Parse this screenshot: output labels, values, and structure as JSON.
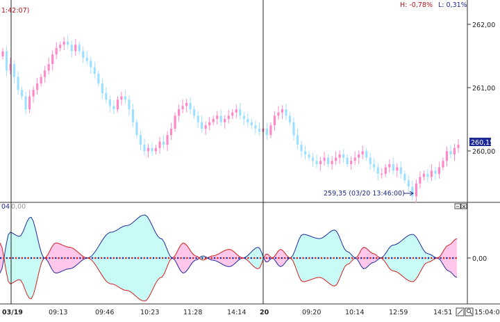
{
  "header": {
    "time_hint": "1:42:07)",
    "hl_high": "H: -0,78%",
    "hl_low": "L: 0,31%"
  },
  "price_axis": {
    "ticks": [
      "262,00",
      "261,00",
      "260,00"
    ],
    "current_price": "260,15"
  },
  "annotation": {
    "low_marker": "259,35 (03/20 13:46:00)"
  },
  "indicator": {
    "header": "04",
    "header_value": "0,00",
    "zero_tick": "0,00"
  },
  "time_axis": {
    "labels": [
      "03/19",
      "09:13",
      "09:46",
      "10:23",
      "11:28",
      "14:14",
      "20",
      "09:20",
      "10:14",
      "12:59",
      "14:51",
      "15:04:05"
    ]
  },
  "colors": {
    "bull": "#ff88c8",
    "bear": "#9ee0ff",
    "fill_pink": "#ffc8ea",
    "fill_cyan": "#c8fbf6",
    "line_red": "#d21e1e",
    "line_blue": "#1f2a9a",
    "accent_red": "#b0141a",
    "accent_blue": "#1b2a8a"
  },
  "chart_data": {
    "type": "candlestick",
    "ylim": [
      259.3,
      262.35
    ],
    "yticks": [
      260,
      261,
      262
    ],
    "last": 260.15,
    "low": 259.35,
    "closes": [
      261.6,
      261.3,
      261.4,
      261.2,
      261.0,
      260.9,
      260.7,
      260.9,
      261.0,
      261.1,
      261.2,
      261.3,
      261.4,
      261.55,
      261.65,
      261.7,
      261.75,
      261.7,
      261.6,
      261.7,
      261.6,
      261.5,
      261.45,
      261.35,
      261.25,
      261.1,
      260.95,
      260.85,
      260.75,
      260.7,
      260.85,
      260.9,
      260.85,
      260.7,
      260.5,
      260.3,
      260.15,
      260.05,
      260.1,
      260.05,
      260.1,
      260.2,
      260.15,
      260.3,
      260.4,
      260.6,
      260.7,
      260.75,
      260.8,
      260.7,
      260.6,
      260.5,
      260.4,
      260.45,
      260.5,
      260.55,
      260.6,
      260.5,
      260.55,
      260.6,
      260.65,
      260.7,
      260.6,
      260.55,
      260.5,
      260.45,
      260.4,
      260.35,
      260.4,
      260.3,
      260.45,
      260.6,
      260.65,
      260.7,
      260.6,
      260.5,
      260.3,
      260.15,
      260.05,
      260.0,
      259.95,
      259.9,
      259.85,
      259.9,
      259.95,
      259.85,
      259.9,
      259.95,
      260.0,
      259.95,
      259.85,
      259.9,
      259.95,
      260.0,
      260.05,
      259.95,
      259.85,
      259.8,
      259.7,
      259.7,
      259.8,
      259.85,
      259.75,
      259.8,
      259.7,
      259.6,
      259.5,
      259.35,
      259.55,
      259.65,
      259.7,
      259.65,
      259.75,
      259.7,
      259.8,
      259.9,
      260.05,
      260.0,
      260.1,
      260.15
    ]
  }
}
